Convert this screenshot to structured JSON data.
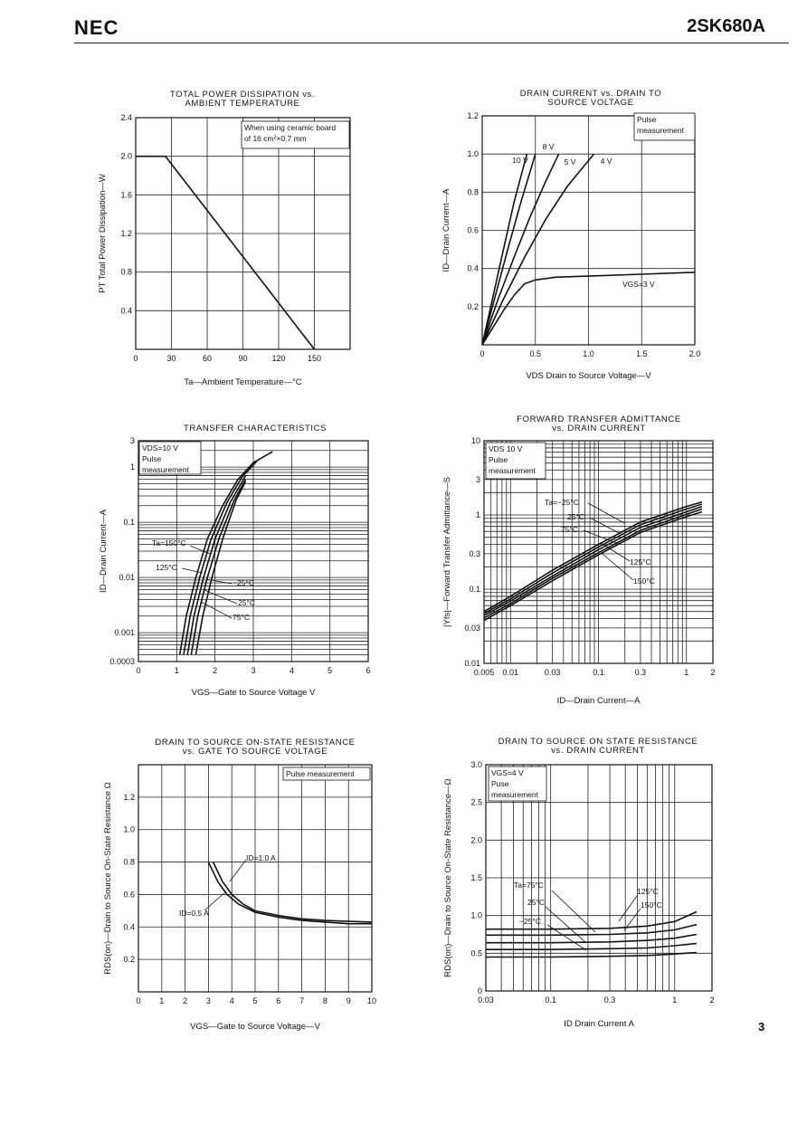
{
  "header": {
    "brand": "NEC",
    "part_number": "2SK680A",
    "page_number": "3"
  },
  "chart_data": [
    {
      "id": "pd",
      "type": "line",
      "title": [
        "TOTAL POWER DISSIPATION vs.",
        "AMBIENT TEMPERATURE"
      ],
      "xlabel": "Ta—Ambient Temperature—°C",
      "ylabel": "PT Total Power Dissipation—W",
      "xlim": [
        0,
        180
      ],
      "ylim": [
        0,
        2.4
      ],
      "x_ticks": [
        "0",
        "30",
        "60",
        "90",
        "120",
        "150"
      ],
      "y_ticks": [
        "2.4",
        "2.0",
        "1.6",
        "1.2",
        "0.8",
        "0.4"
      ],
      "note": [
        "When using ceramic board",
        "of 16 cm²×0.7 mm"
      ],
      "series": [
        {
          "x": [
            0,
            25,
            150
          ],
          "y": [
            2.0,
            2.0,
            0
          ]
        }
      ]
    },
    {
      "id": "ids",
      "type": "line",
      "title": [
        "DRAIN CURRENT vs. DRAIN TO",
        "SOURCE VOLTAGE"
      ],
      "xlabel": "VDS Drain to Source Voltage—V",
      "ylabel": "ID—Drain Current—A",
      "xlim": [
        0,
        2.0
      ],
      "ylim": [
        0,
        1.2
      ],
      "x_ticks": [
        "0",
        "0.5",
        "1.0",
        "1.5",
        "2.0"
      ],
      "y_ticks": [
        "1.2",
        "1.0",
        "0.8",
        "0.6",
        "0.4",
        "0.2"
      ],
      "note": [
        "Pulse",
        "measurement"
      ],
      "series": [
        {
          "name": "10 V",
          "x": [
            0,
            0.1,
            0.2,
            0.3,
            0.42
          ],
          "y": [
            0,
            0.25,
            0.5,
            0.75,
            1.0
          ]
        },
        {
          "name": "8 V",
          "x": [
            0,
            0.12,
            0.24,
            0.36,
            0.5
          ],
          "y": [
            0,
            0.25,
            0.5,
            0.74,
            1.0
          ]
        },
        {
          "name": "5 V",
          "x": [
            0,
            0.15,
            0.3,
            0.45,
            0.6,
            0.72
          ],
          "y": [
            0,
            0.24,
            0.46,
            0.67,
            0.86,
            1.0
          ]
        },
        {
          "name": "4 V",
          "x": [
            0,
            0.2,
            0.4,
            0.6,
            0.8,
            1.05
          ],
          "y": [
            0,
            0.24,
            0.46,
            0.66,
            0.83,
            1.0
          ]
        },
        {
          "name": "VGS=3 V",
          "x": [
            0,
            0.1,
            0.2,
            0.3,
            0.4,
            0.5,
            0.7,
            1.0,
            1.5,
            2.0
          ],
          "y": [
            0,
            0.09,
            0.18,
            0.26,
            0.32,
            0.34,
            0.355,
            0.36,
            0.37,
            0.38
          ]
        }
      ]
    },
    {
      "id": "transfer",
      "type": "line",
      "title": [
        "TRANSFER CHARACTERISTICS"
      ],
      "xlabel": "VGS—Gate to Source Voltage V",
      "ylabel": "ID—Drain Current—A",
      "xscale": "linear",
      "yscale": "log",
      "xlim": [
        0,
        6
      ],
      "ylim": [
        0.0003,
        3
      ],
      "x_ticks": [
        "0",
        "1",
        "2",
        "3",
        "4",
        "5",
        "6"
      ],
      "y_ticks": [
        {
          "v": 3,
          "t": "3"
        },
        {
          "v": 1,
          "t": "1"
        },
        {
          "v": 0.1,
          "t": "0.1"
        },
        {
          "v": 0.01,
          "t": "0.01"
        },
        {
          "v": 0.001,
          "t": "0.001"
        },
        {
          "v": 0.0003,
          "t": "0.0003"
        }
      ],
      "note": [
        "VDS=10 V",
        "Pulse",
        "measurement"
      ],
      "labels": [
        "Ta=150°C",
        "125°C",
        "−25°C",
        "25°C",
        "75°C"
      ],
      "series": [
        {
          "name": "150°C",
          "x": [
            1.08,
            1.25,
            1.5,
            1.8,
            2.2,
            2.6,
            3.0,
            3.5
          ],
          "y": [
            0.0004,
            0.002,
            0.01,
            0.05,
            0.2,
            0.6,
            1.2,
            1.9
          ]
        },
        {
          "name": "125°C",
          "x": [
            1.18,
            1.35,
            1.6,
            1.9,
            2.3,
            2.7,
            3.1
          ],
          "y": [
            0.0004,
            0.002,
            0.01,
            0.05,
            0.22,
            0.65,
            1.3
          ]
        },
        {
          "name": "75°C",
          "x": [
            1.28,
            1.45,
            1.7,
            2.0,
            2.4,
            2.8
          ],
          "y": [
            0.0004,
            0.002,
            0.01,
            0.05,
            0.23,
            0.7
          ]
        },
        {
          "name": "25°C",
          "x": [
            1.38,
            1.55,
            1.8,
            2.1,
            2.5,
            2.8
          ],
          "y": [
            0.0004,
            0.002,
            0.01,
            0.05,
            0.25,
            0.6
          ]
        },
        {
          "name": "−25°C",
          "x": [
            1.5,
            1.68,
            1.92,
            2.2,
            2.55,
            2.8
          ],
          "y": [
            0.0004,
            0.002,
            0.01,
            0.05,
            0.25,
            0.55
          ]
        }
      ]
    },
    {
      "id": "yfs",
      "type": "line",
      "title": [
        "FORWARD TRANSFER ADMITTANCE",
        "vs. DRAIN CURRENT"
      ],
      "xlabel": "ID—Drain Current—A",
      "ylabel": "|Yfs|—Forward Transfer Admittance—S",
      "xscale": "log",
      "yscale": "log",
      "xlim": [
        0.005,
        2
      ],
      "ylim": [
        0.01,
        10
      ],
      "x_ticks": [
        {
          "v": 0.005,
          "t": "0.005"
        },
        {
          "v": 0.01,
          "t": "0.01"
        },
        {
          "v": 0.03,
          "t": "0.03"
        },
        {
          "v": 0.1,
          "t": "0.1"
        },
        {
          "v": 0.3,
          "t": "0.3"
        },
        {
          "v": 1,
          "t": "1"
        },
        {
          "v": 2,
          "t": "2"
        }
      ],
      "y_ticks": [
        {
          "v": 10,
          "t": "10"
        },
        {
          "v": 3,
          "t": "3"
        },
        {
          "v": 1,
          "t": "1"
        },
        {
          "v": 0.3,
          "t": "0.3"
        },
        {
          "v": 0.1,
          "t": "0.1"
        },
        {
          "v": 0.03,
          "t": "0.03"
        },
        {
          "v": 0.01,
          "t": "0.01"
        }
      ],
      "note": [
        "VDS 10 V",
        "Pulse",
        "measurement"
      ],
      "labels": [
        "Ta=−25°C",
        "25°C",
        "75°C",
        "125°C",
        "150°C"
      ],
      "series": [
        {
          "name": "−25°C",
          "x": [
            0.005,
            0.01,
            0.03,
            0.1,
            0.3,
            1,
            1.5
          ],
          "y": [
            0.05,
            0.08,
            0.18,
            0.4,
            0.8,
            1.3,
            1.5
          ]
        },
        {
          "name": "25°C",
          "x": [
            0.005,
            0.01,
            0.03,
            0.1,
            0.3,
            1,
            1.5
          ],
          "y": [
            0.047,
            0.074,
            0.165,
            0.37,
            0.74,
            1.2,
            1.4
          ]
        },
        {
          "name": "75°C",
          "x": [
            0.005,
            0.01,
            0.03,
            0.1,
            0.3,
            1,
            1.5
          ],
          "y": [
            0.044,
            0.069,
            0.15,
            0.34,
            0.68,
            1.1,
            1.3
          ]
        },
        {
          "name": "125°C",
          "x": [
            0.005,
            0.01,
            0.03,
            0.1,
            0.3,
            1,
            1.5
          ],
          "y": [
            0.041,
            0.064,
            0.14,
            0.31,
            0.62,
            1.02,
            1.2
          ]
        },
        {
          "name": "150°C",
          "x": [
            0.005,
            0.01,
            0.03,
            0.1,
            0.3,
            1,
            1.5
          ],
          "y": [
            0.038,
            0.06,
            0.13,
            0.29,
            0.58,
            0.95,
            1.1
          ]
        }
      ]
    },
    {
      "id": "rds_vgs",
      "type": "line",
      "title": [
        "DRAIN TO SOURCE ON-STATE RESISTANCE",
        "vs. GATE TO SOURCE VOLTAGE"
      ],
      "xlabel": "VGS—Gate to Source Voltage—V",
      "ylabel": "RDS(on)—Drain to Source On-State Resistance Ω",
      "xlim": [
        0,
        10
      ],
      "ylim": [
        0,
        1.4
      ],
      "x_ticks": [
        "0",
        "1",
        "2",
        "3",
        "4",
        "5",
        "6",
        "7",
        "8",
        "9",
        "10"
      ],
      "y_ticks": [
        "1.2",
        "1.0",
        "0.8",
        "0.6",
        "0.4",
        "0.2"
      ],
      "note": [
        "Pulse measurement"
      ],
      "labels": [
        "ID=1.0 A",
        "ID=0.5 A"
      ],
      "series": [
        {
          "name": "ID=1.0 A",
          "x": [
            3.2,
            3.6,
            4.0,
            4.5,
            5,
            6,
            7,
            8,
            9,
            10
          ],
          "y": [
            0.8,
            0.68,
            0.6,
            0.54,
            0.5,
            0.47,
            0.45,
            0.44,
            0.435,
            0.43
          ]
        },
        {
          "name": "ID=0.5 A",
          "x": [
            3.0,
            3.4,
            3.8,
            4.3,
            5,
            6,
            7,
            8,
            9,
            10
          ],
          "y": [
            0.8,
            0.68,
            0.6,
            0.54,
            0.49,
            0.46,
            0.44,
            0.43,
            0.42,
            0.42
          ]
        }
      ]
    },
    {
      "id": "rds_id",
      "type": "line",
      "title": [
        "DRAIN TO SOURCE ON STATE RESISTANCE",
        "vs. DRAIN CURRENT"
      ],
      "xlabel": "ID Drain Current A",
      "ylabel": "RDS(on)—Drain to Source On-State Resistance—Ω",
      "xscale": "log",
      "yscale": "linear",
      "xlim": [
        0.03,
        2
      ],
      "ylim": [
        0,
        3.0
      ],
      "x_ticks": [
        {
          "v": 0.03,
          "t": "0.03"
        },
        {
          "v": 0.1,
          "t": "0.1"
        },
        {
          "v": 0.3,
          "t": "0.3"
        },
        {
          "v": 1,
          "t": "1"
        },
        {
          "v": 2,
          "t": "2"
        }
      ],
      "y_ticks": [
        "3.0",
        "2.5",
        "2.0",
        "1.5",
        "1.0",
        "0.5",
        "0"
      ],
      "note": [
        "VGS=4 V",
        "Puse",
        "measurement"
      ],
      "labels": [
        "Ta=75°C",
        "25°C",
        "−25°C",
        "125°C",
        "150°C"
      ],
      "series": [
        {
          "name": "150°C",
          "x": [
            0.03,
            0.1,
            0.3,
            0.6,
            1,
            1.5
          ],
          "y": [
            0.82,
            0.82,
            0.83,
            0.86,
            0.92,
            1.05
          ]
        },
        {
          "name": "125°C",
          "x": [
            0.03,
            0.1,
            0.3,
            0.6,
            1,
            1.5
          ],
          "y": [
            0.74,
            0.74,
            0.75,
            0.77,
            0.81,
            0.88
          ]
        },
        {
          "name": "75°C",
          "x": [
            0.03,
            0.1,
            0.3,
            0.6,
            1,
            1.5
          ],
          "y": [
            0.64,
            0.64,
            0.65,
            0.67,
            0.7,
            0.75
          ]
        },
        {
          "name": "25°C",
          "x": [
            0.03,
            0.1,
            0.3,
            0.6,
            1,
            1.5
          ],
          "y": [
            0.55,
            0.55,
            0.56,
            0.57,
            0.6,
            0.63
          ]
        },
        {
          "name": "−25°C",
          "x": [
            0.03,
            0.1,
            0.3,
            0.6,
            1,
            1.5
          ],
          "y": [
            0.45,
            0.45,
            0.46,
            0.47,
            0.49,
            0.51
          ]
        }
      ]
    }
  ]
}
